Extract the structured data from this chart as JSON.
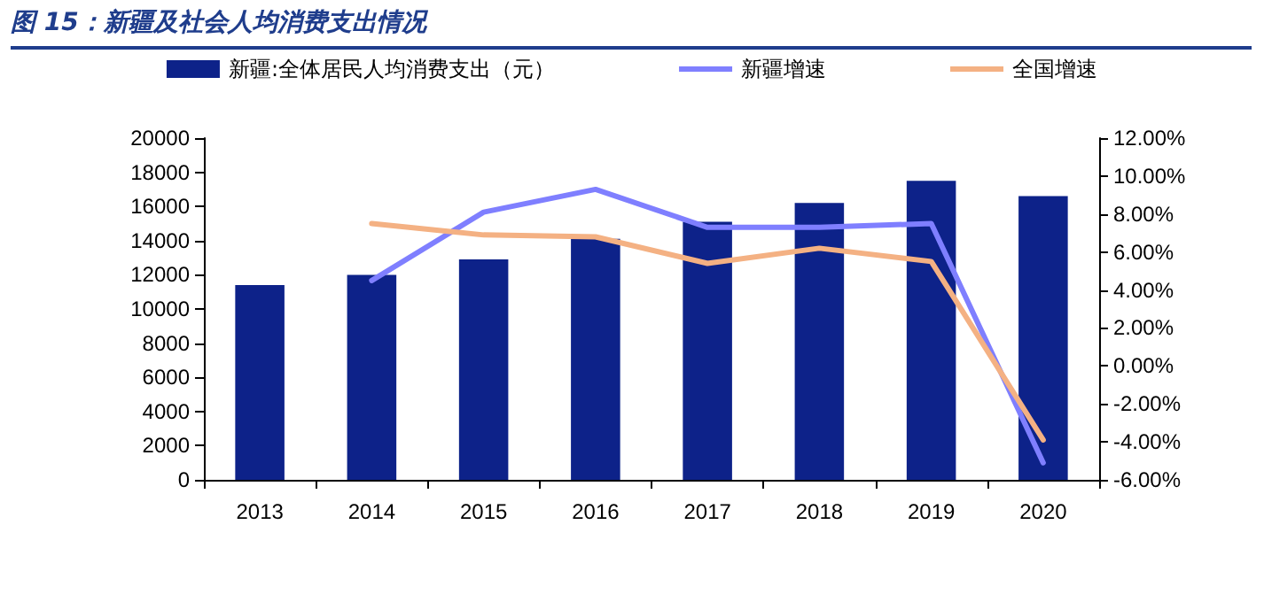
{
  "chart_data": {
    "type": "bar",
    "title": "图 15：新疆及社会人均消费支出情况",
    "categories": [
      "2013",
      "2014",
      "2015",
      "2016",
      "2017",
      "2018",
      "2019",
      "2020"
    ],
    "series": [
      {
        "name": "新疆:全体居民人均消费支出（元）",
        "color": "#0d2289",
        "values": [
          11400,
          12000,
          12900,
          14100,
          15100,
          16200,
          17500,
          16600
        ]
      },
      {
        "name": "新疆增速",
        "type": "line",
        "axis": "y2",
        "color": "#7f7fff",
        "values": [
          null,
          4.5,
          8.1,
          9.3,
          7.3,
          7.3,
          7.5,
          -5.1
        ]
      },
      {
        "name": "全国增速",
        "type": "line",
        "axis": "y2",
        "color": "#f4b183",
        "values": [
          null,
          7.5,
          6.9,
          6.8,
          5.4,
          6.2,
          5.5,
          -3.9
        ]
      }
    ],
    "ylim": [
      0,
      20000
    ],
    "yticks": [
      0,
      2000,
      4000,
      6000,
      8000,
      10000,
      12000,
      14000,
      16000,
      18000,
      20000
    ],
    "y2lim": [
      -6,
      12
    ],
    "y2ticks": [
      {
        "value": -6,
        "label": "-6.00%"
      },
      {
        "value": -4,
        "label": "-4.00%"
      },
      {
        "value": -2,
        "label": "-2.00%"
      },
      {
        "value": 0,
        "label": "0.00%"
      },
      {
        "value": 2,
        "label": "2.00%"
      },
      {
        "value": 4,
        "label": "4.00%"
      },
      {
        "value": 6,
        "label": "6.00%"
      },
      {
        "value": 8,
        "label": "8.00%"
      },
      {
        "value": 10,
        "label": "10.00%"
      },
      {
        "value": 12,
        "label": "12.00%"
      }
    ],
    "grid": false,
    "legend": "top",
    "marker": "none"
  }
}
